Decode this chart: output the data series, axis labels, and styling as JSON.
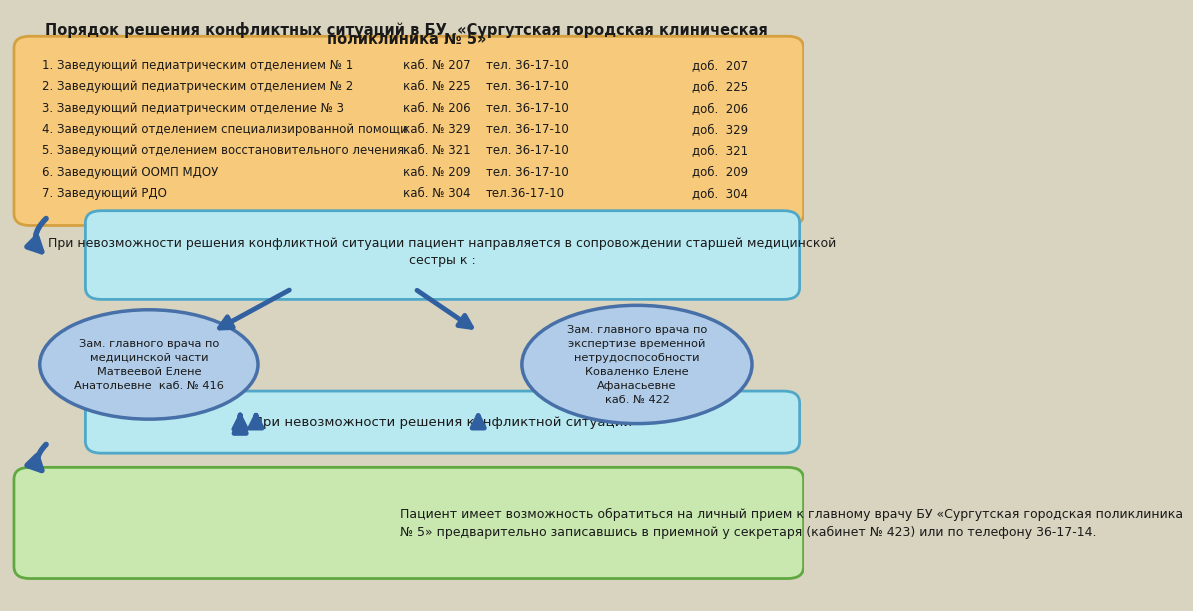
{
  "title_line1": "Порядок решения конфликтных ситуаций в БУ  «Сургутская городская клиническая",
  "title_line2": "поликлиника № 5»",
  "bg_color": "#d9d4c0",
  "box1_color": "#f7c97a",
  "box1_border": "#d4a040",
  "box2_color": "#b8e8f0",
  "box2_border": "#50a8c8",
  "box3_color": "#b8e8f0",
  "box3_border": "#50a8c8",
  "box4_color": "#c8e8b0",
  "box4_border": "#60a840",
  "circle_color": "#b0cce8",
  "circle_border": "#4870a8",
  "arrow_color": "#3060a0",
  "rows": [
    [
      "1. Заведующий педиатрическим отделением № 1",
      "каб. № 207",
      "тел. 36-17-10",
      "доб.  207"
    ],
    [
      "2. Заведующий педиатрическим отделением № 2",
      "каб. № 225",
      "тел. 36-17-10",
      "доб.  225"
    ],
    [
      "3. Заведующий педиатрическим отделение № 3",
      "каб. № 206",
      "тел. 36-17-10",
      "доб.  206"
    ],
    [
      "4. Заведующий отделением специализированной помощи",
      "каб. № 329",
      "тел. 36-17-10",
      "доб.  329"
    ],
    [
      "5. Заведующий отделением восстановительного лечения",
      "каб. № 321",
      "тел. 36-17-10",
      "доб.  321"
    ],
    [
      "6. Заведующий ООМП МДОУ",
      "каб. № 209",
      "тел. 36-17-10",
      "доб.  209"
    ],
    [
      "7. Заведующий РДО",
      "каб. № 304",
      "тел.36-17-10",
      "доб.  304"
    ]
  ],
  "box2_text": "При невозможности решения конфликтной ситуации пациент направляется в сопровождении старшей медицинской\nсестры к :",
  "circle_left_text": "Зам. главного врача по\nмедицинской части\nМатвеевой Елене\nАнатольевне  каб. № 416",
  "circle_right_text": "Зам. главного врача по\nэкспертизе временной\nнетрудоспособности\nКоваленко Елене\nАфанасьевне\nкаб. № 422",
  "box3_text": "При невозможности решения конфликтной ситуации",
  "box4_text": "Пациент имеет возможность обратиться на личный прием к главному врачу БУ «Сургутская городская поликлиника\n№ 5» предварительно записавшись в приемной у секретаря (кабинет № 423) или по телефону 36-17-14."
}
